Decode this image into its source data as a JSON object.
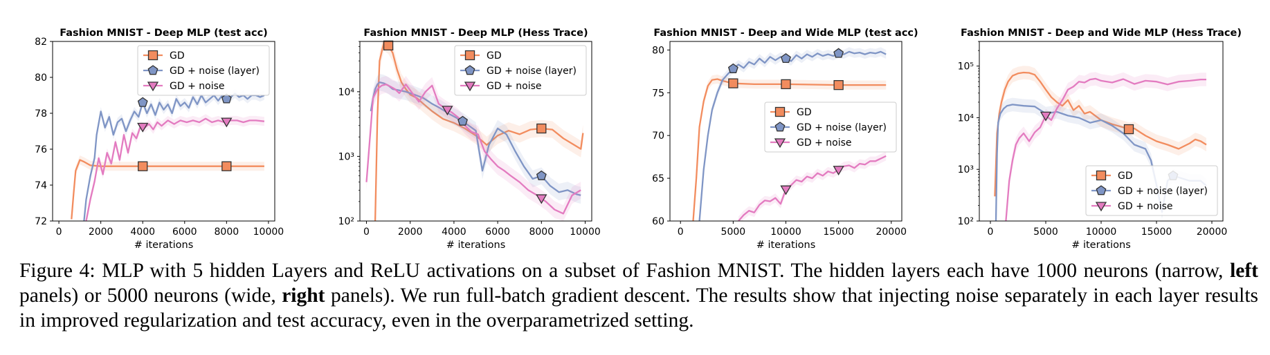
{
  "colors": {
    "gd": "#F28C5E",
    "gd_layer": "#7F95C5",
    "gd_noise": "#E37BC0"
  },
  "chart_data": [
    {
      "type": "line",
      "title": "Fashion MNIST - Deep MLP (test acc)",
      "xlabel": "# iterations",
      "ylabel": "",
      "xlim": [
        -300,
        10300
      ],
      "ylim": [
        72,
        82
      ],
      "yscale": "linear",
      "xticks": [
        0,
        2000,
        4000,
        6000,
        8000,
        10000
      ],
      "xtick_labels": [
        "0",
        "2000",
        "4000",
        "6000",
        "8000",
        "10000"
      ],
      "yticks": [
        72,
        74,
        76,
        78,
        80,
        82
      ],
      "ytick_labels": [
        "72",
        "74",
        "76",
        "78",
        "80",
        "82"
      ],
      "legend_position": "top-right",
      "series": [
        {
          "name": "GD",
          "color": "#F28C5E",
          "marker": "square",
          "x": [
            600,
            700,
            800,
            1000,
            1200,
            1500,
            2000,
            3000,
            4000,
            5000,
            6000,
            7000,
            8000,
            9000,
            9800
          ],
          "y": [
            72.1,
            73.5,
            74.8,
            75.4,
            75.3,
            75.1,
            75.05,
            75.05,
            75.05,
            75.05,
            75.05,
            75.05,
            75.05,
            75.05,
            75.05
          ],
          "markers_x": [
            4000,
            8000
          ]
        },
        {
          "name": "GD + noise (layer)",
          "color": "#7F95C5",
          "marker": "pentagon",
          "x": [
            1200,
            1300,
            1500,
            1700,
            1800,
            2000,
            2200,
            2400,
            2600,
            2800,
            3000,
            3200,
            3400,
            3600,
            3800,
            4000,
            4200,
            4400,
            4600,
            4800,
            5000,
            5200,
            5400,
            5600,
            5800,
            6000,
            6200,
            6400,
            6600,
            6800,
            7000,
            7200,
            7400,
            7600,
            7800,
            8000,
            8200,
            8400,
            8600,
            8800,
            9000,
            9200,
            9400,
            9600,
            9800
          ],
          "y": [
            72,
            73.2,
            74.5,
            75.5,
            76.8,
            78.1,
            77.2,
            77.8,
            76.8,
            77.5,
            77.7,
            77.0,
            77.6,
            78.1,
            77.8,
            78.6,
            78.0,
            78.5,
            77.9,
            78.6,
            78.2,
            78.5,
            78.0,
            78.8,
            78.4,
            78.6,
            78.3,
            78.9,
            78.5,
            79.0,
            78.6,
            78.8,
            79.0,
            78.7,
            79.0,
            78.8,
            78.9,
            79.1,
            78.9,
            79.0,
            78.8,
            79.0,
            79.0,
            78.9,
            79.0
          ],
          "markers_x": [
            4000,
            8000
          ]
        },
        {
          "name": "GD + noise",
          "color": "#E37BC0",
          "marker": "triangle-down",
          "x": [
            1300,
            1500,
            1700,
            1900,
            2100,
            2300,
            2500,
            2700,
            2900,
            3100,
            3300,
            3500,
            3700,
            3900,
            4100,
            4300,
            4500,
            4700,
            4900,
            5200,
            5500,
            5800,
            6100,
            6400,
            6700,
            7000,
            7300,
            7600,
            7900,
            8200,
            8500,
            8800,
            9100,
            9400,
            9800
          ],
          "y": [
            72,
            73.2,
            74.2,
            75.5,
            74.6,
            75.8,
            75.2,
            76.4,
            75.4,
            76.8,
            75.8,
            76.9,
            76.6,
            77.3,
            77.2,
            77.4,
            77.1,
            77.5,
            77.3,
            77.6,
            77.4,
            77.6,
            77.5,
            77.6,
            77.5,
            77.7,
            77.5,
            77.6,
            77.5,
            77.6,
            77.6,
            77.5,
            77.6,
            77.6,
            77.55
          ],
          "markers_x": [
            4000,
            8000
          ]
        }
      ]
    },
    {
      "type": "line",
      "title": "Fashion MNIST - Deep MLP (Hess Trace)",
      "xlabel": "# iterations",
      "ylabel": "",
      "xlim": [
        -300,
        10300
      ],
      "ylim": [
        100,
        60000
      ],
      "yscale": "log",
      "xticks": [
        0,
        2000,
        4000,
        6000,
        8000,
        10000
      ],
      "xtick_labels": [
        "0",
        "2000",
        "4000",
        "6000",
        "8000",
        "10000"
      ],
      "yticks": [
        100,
        1000,
        10000
      ],
      "ytick_labels": [
        "10²",
        "10³",
        "10⁴"
      ],
      "legend_position": "top-right",
      "series": [
        {
          "name": "GD",
          "color": "#F28C5E",
          "marker": "square",
          "x": [
            400,
            500,
            600,
            800,
            1000,
            1200,
            1400,
            1600,
            1800,
            2000,
            2300,
            2600,
            3000,
            3500,
            4000,
            4500,
            5000,
            5500,
            6000,
            6500,
            7000,
            7500,
            8000,
            8500,
            9000,
            9500,
            9800,
            9900
          ],
          "y": [
            100,
            4000,
            30000,
            58000,
            52000,
            40000,
            22000,
            14000,
            11000,
            9000,
            8000,
            6500,
            5000,
            3800,
            3300,
            2700,
            2100,
            1500,
            2100,
            2500,
            2200,
            2600,
            2700,
            2600,
            1900,
            1500,
            1300,
            2300
          ],
          "markers_x": [
            1000,
            8000
          ]
        },
        {
          "name": "GD + noise (layer)",
          "color": "#7F95C5",
          "marker": "pentagon",
          "x": [
            200,
            300,
            400,
            500,
            600,
            800,
            1000,
            1200,
            1500,
            1800,
            2200,
            2600,
            3000,
            3400,
            3800,
            4400,
            5000,
            5300,
            5600,
            6000,
            6400,
            6800,
            7200,
            7600,
            8000,
            8400,
            8800,
            9200,
            9600,
            9800
          ],
          "y": [
            5000,
            8000,
            11000,
            13000,
            14000,
            13500,
            12500,
            11000,
            10500,
            10000,
            9000,
            8000,
            6500,
            5500,
            4500,
            3500,
            2500,
            600,
            1500,
            2700,
            2200,
            1200,
            700,
            450,
            500,
            350,
            280,
            300,
            260,
            250
          ],
          "markers_x": [
            4400,
            8000
          ]
        },
        {
          "name": "GD + noise",
          "color": "#E37BC0",
          "marker": "triangle-down",
          "x": [
            0,
            300,
            500,
            700,
            900,
            1100,
            1300,
            1500,
            1800,
            2100,
            2400,
            2700,
            3000,
            3300,
            3600,
            3900,
            4200,
            4500,
            4800,
            5100,
            5400,
            5700,
            6000,
            6300,
            6600,
            7000,
            7400,
            7800,
            8200,
            8600,
            9000,
            9400,
            9800
          ],
          "y": [
            400,
            8000,
            11000,
            12500,
            13000,
            12000,
            11000,
            9500,
            13000,
            9500,
            7000,
            10000,
            12500,
            6500,
            5500,
            4800,
            4000,
            3000,
            2400,
            2200,
            1200,
            900,
            700,
            600,
            500,
            400,
            300,
            250,
            200,
            150,
            130,
            250,
            300
          ],
          "markers_x": [
            3700,
            8000
          ]
        }
      ]
    },
    {
      "type": "line",
      "title": "Fashion MNIST - Deep and Wide MLP (test acc)",
      "xlabel": "# iterations",
      "ylabel": "",
      "xlim": [
        -1000,
        21000
      ],
      "ylim": [
        60,
        81
      ],
      "yscale": "linear",
      "xticks": [
        0,
        5000,
        10000,
        15000,
        20000
      ],
      "xtick_labels": [
        "0",
        "5000",
        "10000",
        "15000",
        "20000"
      ],
      "yticks": [
        60,
        65,
        70,
        75,
        80
      ],
      "ytick_labels": [
        "60",
        "65",
        "70",
        "75",
        "80"
      ],
      "legend_position": "center-right",
      "series": [
        {
          "name": "GD",
          "color": "#F28C5E",
          "marker": "square",
          "x": [
            1200,
            1500,
            1800,
            2200,
            2600,
            3000,
            3500,
            4000,
            5000,
            7000,
            10000,
            15000,
            19500
          ],
          "y": [
            60,
            65,
            71,
            74,
            75.8,
            76.5,
            76.6,
            76.4,
            76.1,
            76.0,
            76.0,
            75.9,
            75.9
          ],
          "markers_x": [
            5000,
            10000,
            15000
          ]
        },
        {
          "name": "GD + noise (layer)",
          "color": "#7F95C5",
          "marker": "pentagon",
          "x": [
            1800,
            2200,
            2600,
            3000,
            3500,
            4000,
            4500,
            5000,
            5500,
            6000,
            6500,
            7000,
            7500,
            8000,
            8500,
            9000,
            9500,
            10000,
            10500,
            11000,
            11500,
            12000,
            12500,
            13000,
            13500,
            14000,
            14500,
            15000,
            15500,
            16000,
            16500,
            17000,
            17500,
            18000,
            18500,
            19000,
            19500
          ],
          "y": [
            60,
            66,
            70,
            73,
            75,
            76.5,
            77.2,
            77.8,
            78.3,
            77.9,
            78.6,
            78.3,
            79.0,
            78.5,
            79.2,
            78.8,
            79.2,
            79.0,
            78.7,
            79.4,
            79.0,
            79.5,
            79.2,
            79.6,
            79.3,
            79.5,
            79.3,
            79.6,
            79.5,
            79.8,
            79.6,
            79.7,
            79.5,
            79.7,
            79.6,
            79.8,
            79.5
          ],
          "markers_x": [
            5000,
            10000,
            15000
          ]
        },
        {
          "name": "GD + noise",
          "color": "#E37BC0",
          "marker": "triangle-down",
          "x": [
            5500,
            6000,
            6500,
            7000,
            7500,
            8000,
            8500,
            9000,
            9500,
            10000,
            10500,
            11000,
            11500,
            12000,
            12500,
            13000,
            13500,
            14000,
            14500,
            15000,
            15500,
            16000,
            16500,
            17000,
            17500,
            18000,
            18500,
            19000,
            19500
          ],
          "y": [
            60,
            60.7,
            61.2,
            61.0,
            61.9,
            62.4,
            62.3,
            62.7,
            62.0,
            63.7,
            64.2,
            64.8,
            64.6,
            65.2,
            65.0,
            65.6,
            65.3,
            65.8,
            65.6,
            66.0,
            66.4,
            66.5,
            66.2,
            66.7,
            66.6,
            67.0,
            67.0,
            67.3,
            67.6
          ],
          "markers_x": [
            10000,
            15000
          ]
        }
      ]
    },
    {
      "type": "line",
      "title": "Fashion MNIST - Deep and Wide MLP (Hess Trace)",
      "xlabel": "# iterations",
      "ylabel": "",
      "xlim": [
        -1000,
        21000
      ],
      "ylim": [
        100,
        300000
      ],
      "yscale": "log",
      "xticks": [
        0,
        5000,
        10000,
        15000,
        20000
      ],
      "xtick_labels": [
        "0",
        "5000",
        "10000",
        "15000",
        "20000"
      ],
      "yticks": [
        100,
        1000,
        10000,
        100000
      ],
      "ytick_labels": [
        "10²",
        "10³",
        "10⁴",
        "10⁵"
      ],
      "legend_position": "lower-right",
      "series": [
        {
          "name": "GD",
          "color": "#F28C5E",
          "marker": "square",
          "x": [
            400,
            600,
            800,
            1000,
            1300,
            1600,
            2000,
            2500,
            3000,
            3500,
            4000,
            4500,
            5000,
            5500,
            6000,
            6500,
            7000,
            7500,
            8000,
            8500,
            9000,
            10000,
            11000,
            12000,
            12500,
            13000,
            14000,
            15000,
            16000,
            17000,
            18000,
            18500,
            19000,
            19500
          ],
          "y": [
            300,
            5000,
            12000,
            20000,
            35000,
            50000,
            65000,
            72000,
            75000,
            74000,
            68000,
            50000,
            35000,
            25000,
            20000,
            17000,
            22000,
            14000,
            17000,
            12000,
            13000,
            9000,
            7500,
            6500,
            6000,
            6200,
            4500,
            3500,
            3000,
            2500,
            3200,
            3800,
            3500,
            3000
          ],
          "markers_x": [
            12500
          ]
        },
        {
          "name": "GD + noise (layer)",
          "color": "#7F95C5",
          "marker": "pentagon",
          "x": [
            500,
            600,
            700,
            900,
            1200,
            1500,
            2000,
            3000,
            4000,
            5000,
            6000,
            7000,
            8000,
            9000,
            10000,
            11000,
            12000,
            13000,
            14000,
            14500,
            15000,
            15500,
            16000,
            16500,
            17000,
            18000,
            19000,
            19500
          ],
          "y": [
            100,
            2000,
            8000,
            12000,
            15000,
            17000,
            18000,
            17000,
            16500,
            12000,
            13000,
            11000,
            10000,
            8000,
            9000,
            7000,
            5000,
            3000,
            2500,
            1500,
            500,
            150,
            600,
            750,
            700,
            600,
            600,
            480
          ],
          "markers_x": [
            16500
          ]
        },
        {
          "name": "GD + noise",
          "color": "#E37BC0",
          "marker": "triangle-down",
          "x": [
            1400,
            1700,
            2000,
            2300,
            2600,
            3000,
            3500,
            4000,
            4500,
            5000,
            5500,
            6000,
            6500,
            7000,
            7500,
            8000,
            8500,
            9000,
            9500,
            10000,
            11000,
            12000,
            13000,
            14000,
            15000,
            16000,
            17000,
            18000,
            19000,
            19500
          ],
          "y": [
            100,
            600,
            1500,
            3000,
            4000,
            5000,
            3500,
            5200,
            6500,
            11000,
            9000,
            15000,
            22000,
            35000,
            40000,
            50000,
            48000,
            55000,
            57000,
            52000,
            48000,
            56000,
            45000,
            52000,
            50000,
            44000,
            50000,
            52000,
            55000,
            55000
          ],
          "markers_x": [
            5000
          ]
        }
      ]
    }
  ],
  "caption": {
    "label": "Figure 4:",
    "part1": " MLP with 5 hidden Layers and ReLU activations on a subset of Fashion MNIST. The hidden layers each have 1000 neurons (narrow, ",
    "bold1": "left",
    "part2": " panels) or 5000 neurons (wide, ",
    "bold2": "right",
    "part3": " panels). We run full-batch gradient descent. The results show that injecting noise separately in each layer results in improved regularization and test accuracy, even in the overparametrized setting."
  }
}
